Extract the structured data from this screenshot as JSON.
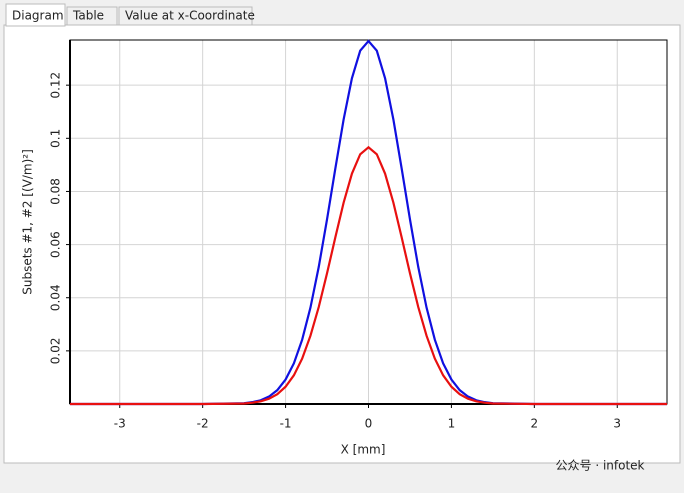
{
  "tabs": [
    "Diagram",
    "Table",
    "Value at x-Coordinate"
  ],
  "watermark": "公众号 · infotek",
  "chart_data": {
    "type": "line",
    "xlabel": "X [mm]",
    "ylabel": "Subsets #1, #2 [(V/m)²]",
    "x": [
      -3.6,
      -2,
      -1.5,
      -1.4,
      -1.3,
      -1.2,
      -1.1,
      -1,
      -0.9,
      -0.8,
      -0.7,
      -0.6,
      -0.5,
      -0.4,
      -0.3,
      -0.2,
      -0.1,
      0,
      0.1,
      0.2,
      0.3,
      0.4,
      0.5,
      0.6,
      0.7,
      0.8,
      0.9,
      1,
      1.1,
      1.2,
      1.3,
      1.4,
      1.5,
      2,
      3.6
    ],
    "series": [
      {
        "color": "#1010e0",
        "values": [
          0,
          0,
          0.0003,
          0.0007,
          0.0014,
          0.0028,
          0.0052,
          0.0092,
          0.0153,
          0.0242,
          0.0363,
          0.0516,
          0.0695,
          0.0886,
          0.1071,
          0.1226,
          0.133,
          0.1366,
          0.133,
          0.1226,
          0.1071,
          0.0886,
          0.0695,
          0.0516,
          0.0363,
          0.0242,
          0.0153,
          0.0092,
          0.0052,
          0.0028,
          0.0014,
          0.0007,
          0.0003,
          0,
          0
        ]
      },
      {
        "color": "#e81010",
        "values": [
          0,
          0,
          0.0002,
          0.0005,
          0.001,
          0.002,
          0.0037,
          0.0065,
          0.0108,
          0.0171,
          0.0257,
          0.0365,
          0.0492,
          0.0627,
          0.0758,
          0.0867,
          0.094,
          0.0966,
          0.094,
          0.0867,
          0.0758,
          0.0627,
          0.0492,
          0.0365,
          0.0257,
          0.0171,
          0.0108,
          0.0065,
          0.0037,
          0.002,
          0.001,
          0.0005,
          0.0002,
          0,
          0
        ]
      }
    ],
    "xlim": [
      -3.6,
      3.6
    ],
    "ylim": [
      0,
      0.137
    ],
    "xticks": [
      -3,
      -2,
      -1,
      0,
      1,
      2,
      3
    ],
    "yticks": [
      0.02,
      0.04,
      0.06,
      0.08,
      0.1,
      0.12
    ],
    "grid": true
  }
}
